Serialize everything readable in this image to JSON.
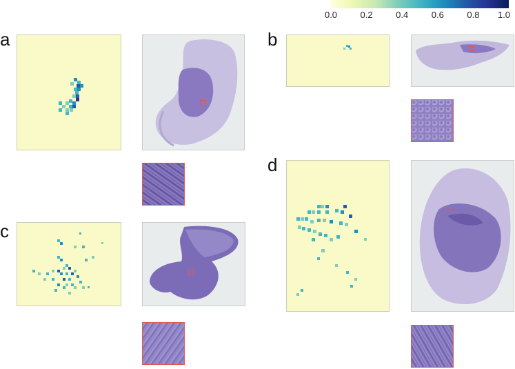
{
  "colorbar": {
    "ticks": [
      "0.0",
      "0.2",
      "0.4",
      "0.6",
      "0.8",
      "1.0"
    ]
  },
  "panels": [
    {
      "label": "a"
    },
    {
      "label": "b"
    },
    {
      "label": "c"
    },
    {
      "label": "d"
    }
  ],
  "colors": {
    "heatmap_bg": "#fafac8",
    "low": "#7fd0c0",
    "mid": "#41b6c4",
    "high": "#225ea8",
    "top": "#0c2c84",
    "tissue": "#8a78c0",
    "patch_border": "#e2574c"
  }
}
